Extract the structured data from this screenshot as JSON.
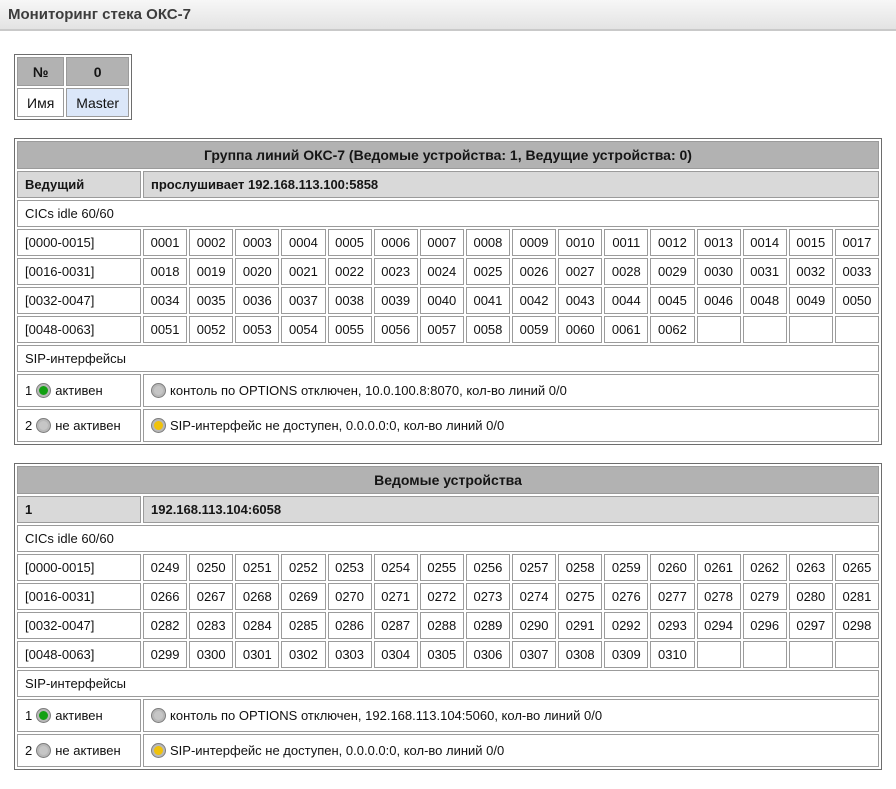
{
  "page": {
    "title": "Мониторинг стека ОКС-7"
  },
  "device_table": {
    "header_label": "№",
    "header_value": "0",
    "name_label": "Имя",
    "name_value": "Master"
  },
  "colors": {
    "green": "#12a012",
    "gray": "#c6c6c6",
    "yellow": "#f0c20a"
  },
  "tables": [
    {
      "title": "Группа линий ОКС-7 (Ведомые устройства: 1, Ведущие устройства: 0)",
      "subheader": {
        "label": "Ведущий",
        "value": "прослушивает 192.168.113.100:5858"
      },
      "cics_label": "CICs idle 60/60",
      "cic_rows": [
        {
          "range": "[0000-0015]",
          "values": [
            "0001",
            "0002",
            "0003",
            "0004",
            "0005",
            "0006",
            "0007",
            "0008",
            "0009",
            "0010",
            "0011",
            "0012",
            "0013",
            "0014",
            "0015",
            "0017"
          ]
        },
        {
          "range": "[0016-0031]",
          "values": [
            "0018",
            "0019",
            "0020",
            "0021",
            "0022",
            "0023",
            "0024",
            "0025",
            "0026",
            "0027",
            "0028",
            "0029",
            "0030",
            "0031",
            "0032",
            "0033"
          ]
        },
        {
          "range": "[0032-0047]",
          "values": [
            "0034",
            "0035",
            "0036",
            "0037",
            "0038",
            "0039",
            "0040",
            "0041",
            "0042",
            "0043",
            "0044",
            "0045",
            "0046",
            "0048",
            "0049",
            "0050"
          ]
        },
        {
          "range": "[0048-0063]",
          "values": [
            "0051",
            "0052",
            "0053",
            "0054",
            "0055",
            "0056",
            "0057",
            "0058",
            "0059",
            "0060",
            "0061",
            "0062",
            "",
            "",
            "",
            ""
          ]
        }
      ],
      "sip_label": "SIP-интерфейсы",
      "sip_rows": [
        {
          "num": "1",
          "status_color": "green",
          "status": "активен",
          "detail_color": "gray",
          "detail": "контоль по OPTIONS отключен, 10.0.100.8:8070, кол-во линий 0/0"
        },
        {
          "num": "2",
          "status_color": "gray",
          "status": "не активен",
          "detail_color": "yellow",
          "detail": "SIP-интерфейс не доступен, 0.0.0.0:0, кол-во линий 0/0"
        }
      ]
    },
    {
      "title": "Ведомые устройства",
      "subheader": {
        "label": "1",
        "value": "192.168.113.104:6058"
      },
      "cics_label": "CICs idle 60/60",
      "cic_rows": [
        {
          "range": "[0000-0015]",
          "values": [
            "0249",
            "0250",
            "0251",
            "0252",
            "0253",
            "0254",
            "0255",
            "0256",
            "0257",
            "0258",
            "0259",
            "0260",
            "0261",
            "0262",
            "0263",
            "0265"
          ]
        },
        {
          "range": "[0016-0031]",
          "values": [
            "0266",
            "0267",
            "0268",
            "0269",
            "0270",
            "0271",
            "0272",
            "0273",
            "0274",
            "0275",
            "0276",
            "0277",
            "0278",
            "0279",
            "0280",
            "0281"
          ]
        },
        {
          "range": "[0032-0047]",
          "values": [
            "0282",
            "0283",
            "0284",
            "0285",
            "0286",
            "0287",
            "0288",
            "0289",
            "0290",
            "0291",
            "0292",
            "0293",
            "0294",
            "0296",
            "0297",
            "0298"
          ]
        },
        {
          "range": "[0048-0063]",
          "values": [
            "0299",
            "0300",
            "0301",
            "0302",
            "0303",
            "0304",
            "0305",
            "0306",
            "0307",
            "0308",
            "0309",
            "0310",
            "",
            "",
            "",
            ""
          ]
        }
      ],
      "sip_label": "SIP-интерфейсы",
      "sip_rows": [
        {
          "num": "1",
          "status_color": "green",
          "status": "активен",
          "detail_color": "gray",
          "detail": "контоль по OPTIONS отключен, 192.168.113.104:5060, кол-во линий 0/0"
        },
        {
          "num": "2",
          "status_color": "gray",
          "status": "не активен",
          "detail_color": "yellow",
          "detail": "SIP-интерфейс не доступен, 0.0.0.0:0, кол-во линий 0/0"
        }
      ]
    }
  ]
}
